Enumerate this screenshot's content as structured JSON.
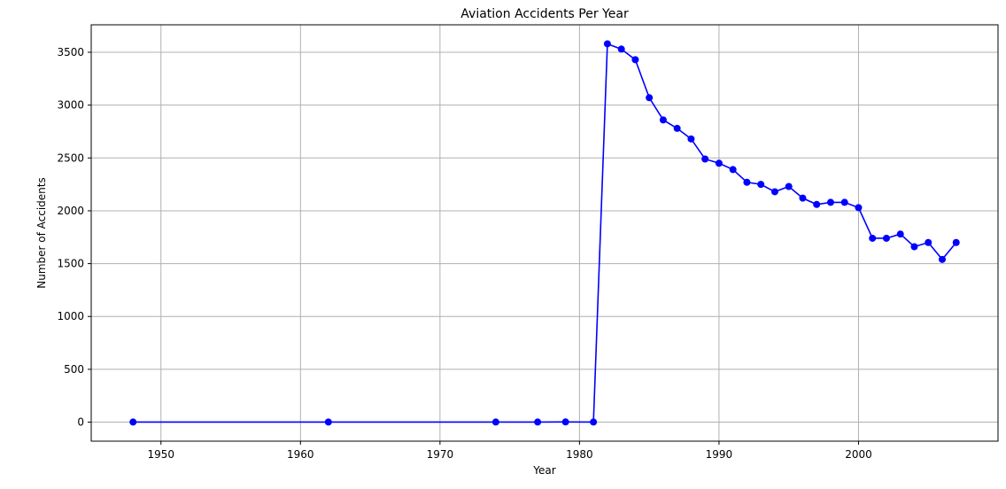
{
  "chart_data": {
    "type": "line",
    "title": "Aviation Accidents Per Year",
    "xlabel": "Year",
    "ylabel": "Number of Accidents",
    "xlim": [
      1945,
      2010
    ],
    "ylim": [
      -180,
      3760
    ],
    "xticks": [
      1950,
      1960,
      1970,
      1980,
      1990,
      2000
    ],
    "yticks": [
      0,
      500,
      1000,
      1500,
      2000,
      2500,
      3000,
      3500
    ],
    "grid": true,
    "series": [
      {
        "color": "#0000ff",
        "marker": "circle",
        "x": [
          1948,
          1962,
          1974,
          1977,
          1979,
          1981,
          1982,
          1983,
          1984,
          1985,
          1986,
          1987,
          1988,
          1989,
          1990,
          1991,
          1992,
          1993,
          1994,
          1995,
          1996,
          1997,
          1998,
          1999,
          2000,
          2001,
          2002,
          2003,
          2004,
          2005,
          2006,
          2007
        ],
        "y": [
          1,
          1,
          1,
          1,
          2,
          1,
          3580,
          3530,
          3430,
          3070,
          2860,
          2780,
          2680,
          2490,
          2450,
          2390,
          2270,
          2250,
          2180,
          2230,
          2120,
          2060,
          2080,
          2080,
          2030,
          1740,
          1740,
          1780,
          1660,
          1700,
          1540,
          1700
        ]
      }
    ]
  }
}
